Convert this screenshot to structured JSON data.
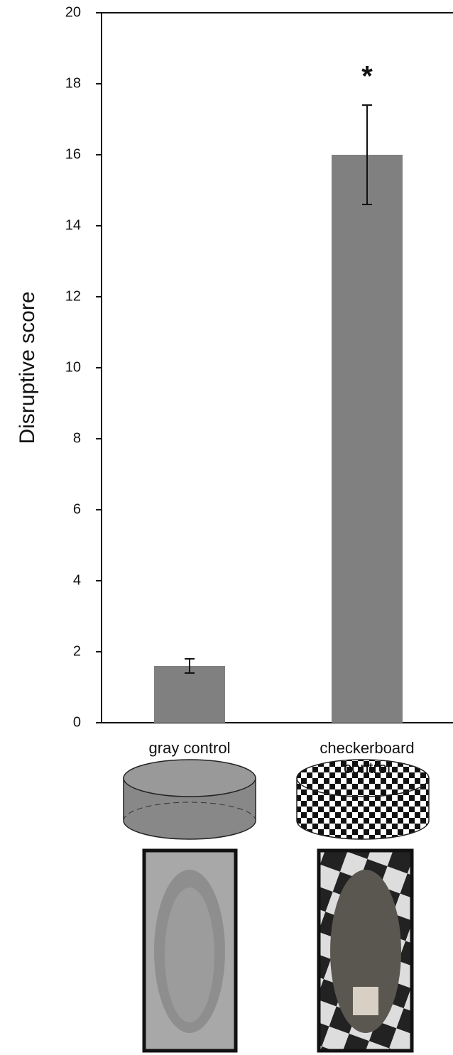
{
  "chart_data": {
    "type": "bar",
    "y_label": "Disruptive score",
    "categories": [
      "gray control",
      "checkerboard control"
    ],
    "values": [
      1.6,
      16
    ],
    "errors": [
      0.2,
      1.4
    ],
    "color": "#808080",
    "annotation": "*",
    "ylim": [
      0,
      20
    ],
    "yticks": [
      0,
      2,
      4,
      6,
      8,
      10,
      12,
      14,
      16,
      18,
      20
    ],
    "grid": false
  }
}
